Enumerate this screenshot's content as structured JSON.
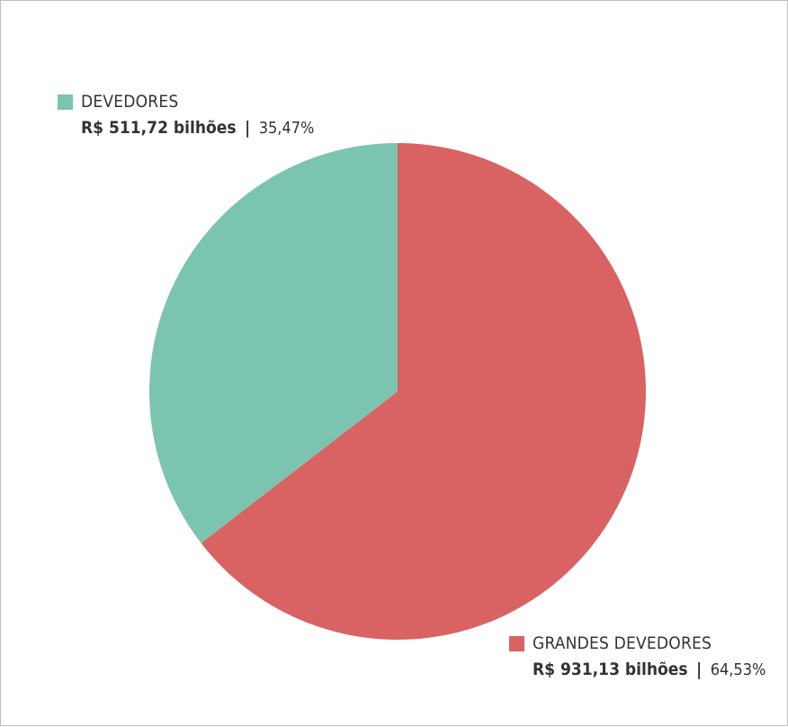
{
  "chart_data": {
    "type": "pie",
    "title": "",
    "slices": [
      {
        "label": "DEVEDORES",
        "value": 511.72,
        "value_label": "R$ 511,72 bilhões",
        "percent": 35.47,
        "percent_label": "35,47%",
        "color": "#7bc4b0"
      },
      {
        "label": "GRANDES DEVEDORES",
        "value": 931.13,
        "value_label": "R$ 931,13 bilhões",
        "percent": 64.53,
        "percent_label": "64,53%",
        "color": "#d96363"
      }
    ],
    "start_angle": "12 o'clock",
    "direction": "clockwise, GRANDES DEVEDORES first",
    "legend_placement": "next to slices"
  },
  "separator": "|"
}
